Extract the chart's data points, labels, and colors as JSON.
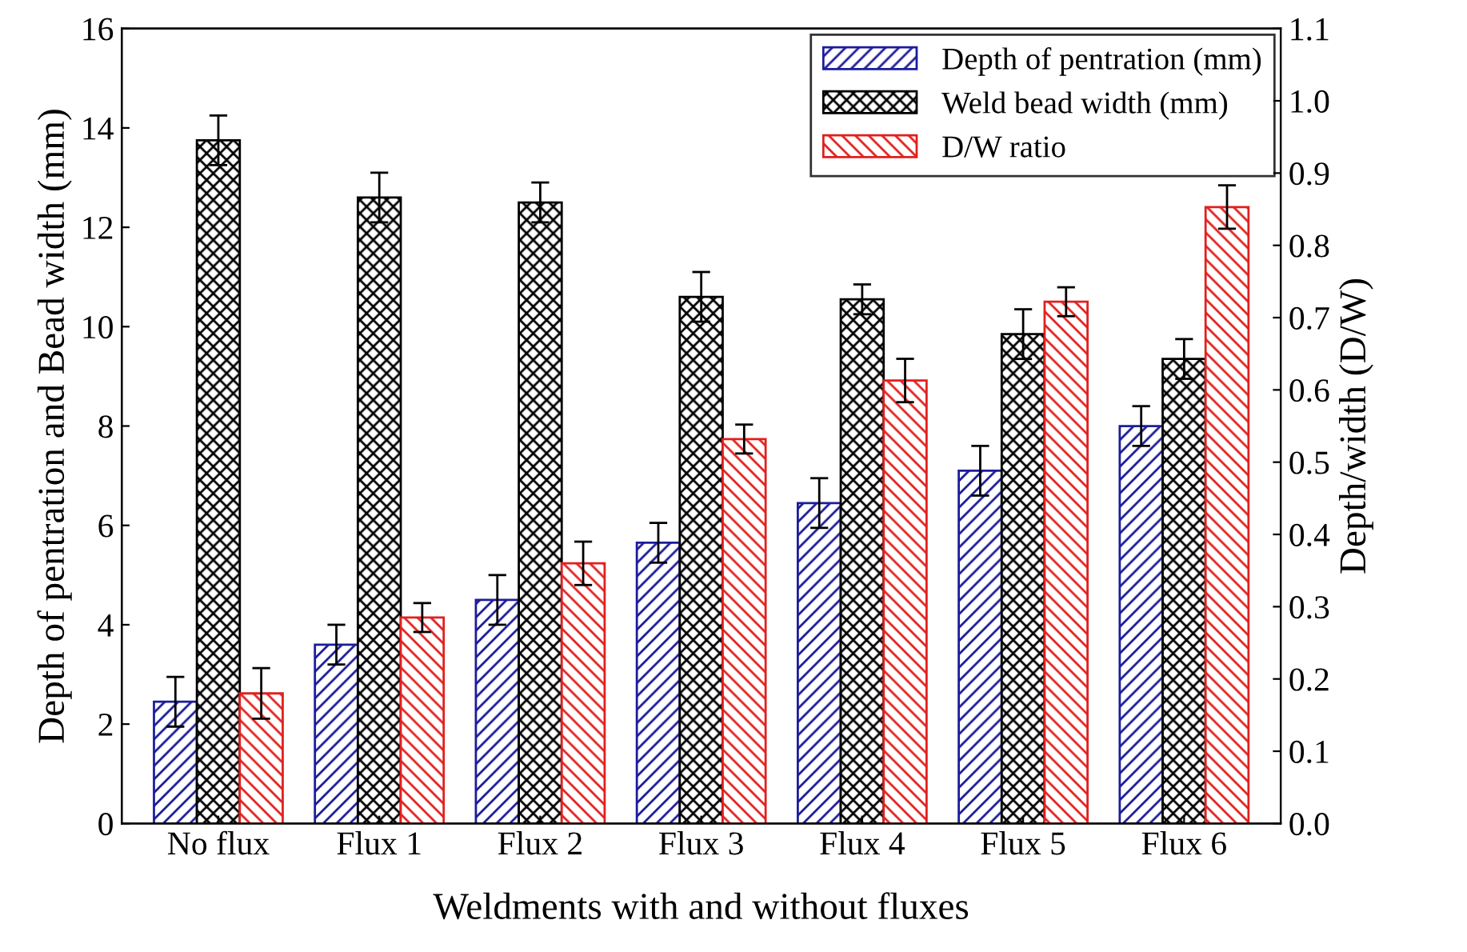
{
  "chart_data": {
    "type": "bar",
    "xlabel": "Weldments with and without fluxes",
    "ylabel": "Depth of pentration and Bead width (mm)",
    "y2label": "Depth/width (D/W)",
    "categories": [
      "No flux",
      "Flux 1",
      "Flux 2",
      "Flux 3",
      "Flux 4",
      "Flux 5",
      "Flux 6"
    ],
    "series": [
      {
        "name": "Depth of pentration (mm)",
        "color": "#1c1c9c",
        "values": [
          2.45,
          3.6,
          4.5,
          5.65,
          6.45,
          7.1,
          8.0
        ],
        "errors": [
          0.5,
          0.4,
          0.5,
          0.4,
          0.5,
          0.5,
          0.4
        ]
      },
      {
        "name": "Weld bead width (mm)",
        "color": "#000000",
        "values": [
          13.75,
          12.6,
          12.5,
          10.6,
          10.55,
          9.85,
          9.35
        ],
        "errors": [
          0.5,
          0.5,
          0.4,
          0.5,
          0.3,
          0.5,
          0.4
        ]
      },
      {
        "name": "D/W ratio",
        "color": "#e0201f",
        "axis": "y2",
        "values": [
          0.18,
          0.285,
          0.36,
          0.532,
          0.613,
          0.722,
          0.853
        ],
        "errors": [
          0.035,
          0.02,
          0.03,
          0.02,
          0.03,
          0.02,
          0.03
        ]
      }
    ],
    "ylim": [
      0,
      16
    ],
    "yticks": [
      0,
      2,
      4,
      6,
      8,
      10,
      12,
      14,
      16
    ],
    "y2lim": [
      0,
      1.1
    ],
    "y2ticks": [
      {
        "value": 0,
        "label": "0.0"
      },
      0.1,
      0.2,
      0.3,
      0.4,
      0.5,
      0.6,
      0.7,
      0.8,
      0.9,
      {
        "value": 1.0,
        "label": "1.0"
      },
      1.1
    ],
    "legend": "top right",
    "grid": false
  }
}
